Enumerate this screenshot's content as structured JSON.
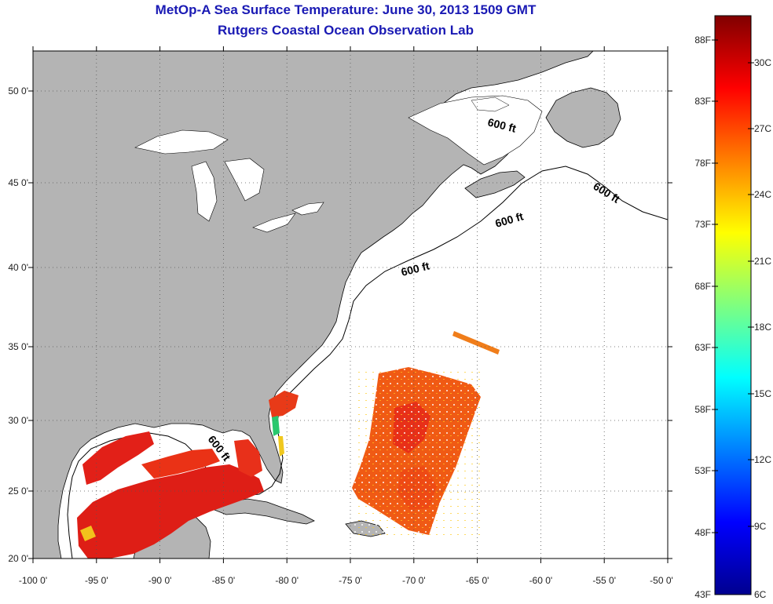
{
  "title": "MetOp-A Sea Surface Temperature:  June 30, 2013 1509 GMT",
  "subtitle": "Rutgers Coastal Ocean Observation Lab",
  "lon_ticks": [
    "-100 0'",
    "-95 0'",
    "-90 0'",
    "-85 0'",
    "-80 0'",
    "-75 0'",
    "-70 0'",
    "-65 0'",
    "-60 0'",
    "-55 0'",
    "-50 0'"
  ],
  "lat_ticks": [
    "50 0'",
    "45 0'",
    "40 0'",
    "35 0'",
    "30 0'",
    "25 0'",
    "20 0'"
  ],
  "contour_label": "600 ft",
  "colorbar": {
    "fahrenheit": [
      "88F",
      "83F",
      "78F",
      "73F",
      "68F",
      "63F",
      "58F",
      "53F",
      "48F",
      "43F"
    ],
    "celsius": [
      "30C",
      "27C",
      "24C",
      "21C",
      "18C",
      "15C",
      "12C",
      "9C",
      "6C"
    ]
  },
  "colors": {
    "land": "#b4b4b4",
    "ocean": "#ffffff",
    "title": "#1a1ab4",
    "warm_sst": "#e0201a",
    "mid_sst": "#f05a14"
  }
}
